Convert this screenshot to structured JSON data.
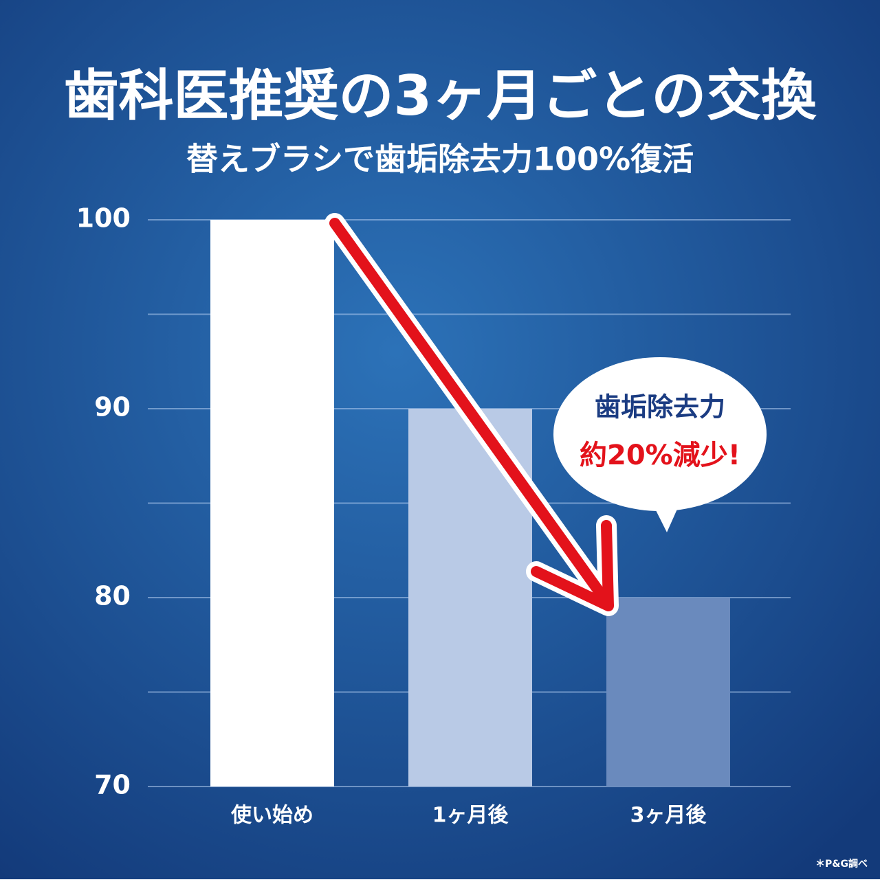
{
  "chart_data": {
    "type": "bar",
    "title": "歯科医推奨の3ヶ月ごとの交換",
    "subtitle": "替えブラシで歯垢除去力100%復活",
    "categories": [
      "使い始め",
      "1ヶ月後",
      "3ヶ月後"
    ],
    "values": [
      100,
      90,
      80
    ],
    "colors": [
      "#ffffff",
      "#b9cae6",
      "#6a8abd"
    ],
    "ylim": [
      70,
      100
    ],
    "yticks": [
      70,
      80,
      90,
      100
    ],
    "grid_yticks": [
      70,
      75,
      80,
      85,
      90,
      95,
      100
    ],
    "grid": true,
    "annotation": [
      "歯垢除去力",
      "約20%減少!"
    ],
    "footnote": "＊P&G調べ"
  }
}
